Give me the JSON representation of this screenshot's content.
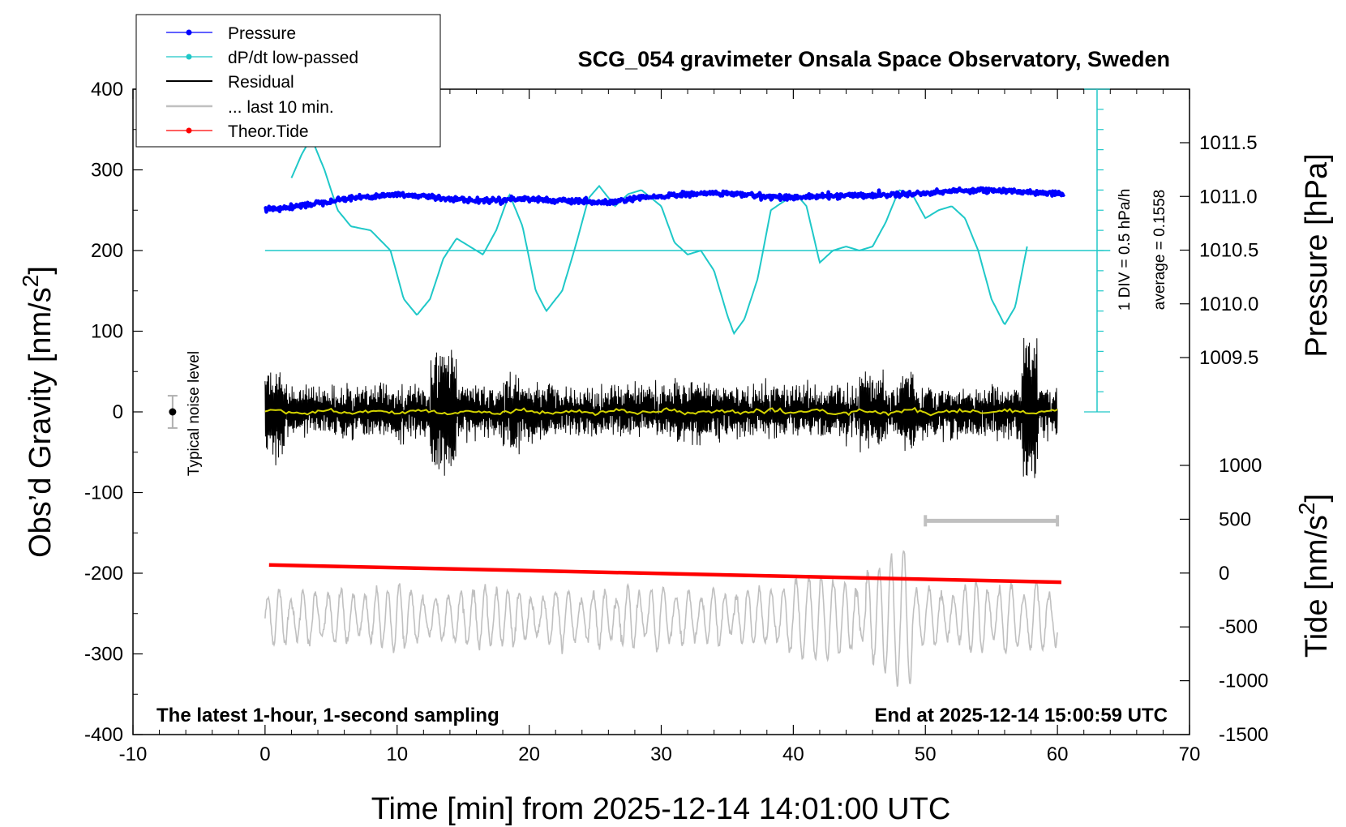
{
  "chart_data": {
    "type": "line",
    "title": "SCG_054 gravimeter Onsala Space Observatory, Sweden",
    "xlabel": "Time [min] from 2025-12-14 14:01:00 UTC",
    "ylabel_left_prefix": "Obs’d Gravity [nm/s",
    "ylabel_left_sup": "2",
    "ylabel_left_suffix": "]",
    "ylabel_right_pressure": "Pressure [hPa]",
    "ylabel_right_tide_prefix": "Tide [nm/s",
    "ylabel_right_tide_sup": "2",
    "ylabel_right_tide_suffix": "]",
    "xlim": [
      -10,
      70
    ],
    "ylim": [
      -400,
      400
    ],
    "x_ticks": [
      "-10",
      "0",
      "10",
      "20",
      "30",
      "40",
      "50",
      "60",
      "70"
    ],
    "y_ticks": [
      "400",
      "300",
      "200",
      "100",
      "0",
      "-100",
      "-200",
      "-300",
      "-400"
    ],
    "pressure_ticks": [
      "1011.5",
      "1011.0",
      "1010.5",
      "1010.0",
      "1009.5"
    ],
    "pressure_tick_values": [
      1011.5,
      1011.0,
      1010.5,
      1010.0,
      1009.5
    ],
    "tide_ticks": [
      "1000",
      "500",
      "0",
      "-500",
      "-1000",
      "-1500"
    ],
    "tide_tick_values": [
      1000,
      500,
      0,
      -500,
      -1000,
      -1500
    ],
    "legend": [
      {
        "label": "Pressure",
        "color": "#0000ff",
        "marker": true
      },
      {
        "label": "dP/dt low-passed",
        "color": "#1fc8c8",
        "marker": true
      },
      {
        "label": "Residual",
        "color": "#000000",
        "marker": false
      },
      {
        "label": "... last 10 min.",
        "color": "#c0c0c0",
        "marker": false
      },
      {
        "label": "Theor.Tide",
        "color": "#ff0000",
        "marker": true
      }
    ],
    "annotations": {
      "bottom_left": "The latest 1-hour, 1-second sampling",
      "bottom_right": "End at 2025-12-14 15:00:59 UTC",
      "noise_label": "Typical noise level",
      "dpdt_scale": "1 DIV = 0.5 hPa/h",
      "dpdt_average": "average = 0.1558"
    },
    "noise_level": {
      "x": -7,
      "y": 0,
      "err": 20
    },
    "last10_bar": {
      "x_start": 50,
      "x_end": 60,
      "y": -135
    },
    "dpdt_axis": {
      "x": 63,
      "y_top": 400,
      "y_bottom": 0,
      "baseline_y": 200
    },
    "series": [
      {
        "name": "Pressure",
        "axis": "pressure_hPa",
        "color": "#0000ff",
        "x": [
          0,
          2,
          4,
          6,
          8,
          10,
          12,
          14,
          16,
          18,
          20,
          22,
          24,
          26,
          28,
          30,
          32,
          34,
          36,
          38,
          40,
          42,
          44,
          46,
          48,
          50,
          52,
          54,
          56,
          58,
          60
        ],
        "values": [
          1010.88,
          1010.9,
          1010.94,
          1010.98,
          1011.0,
          1011.02,
          1011.0,
          1010.98,
          1010.96,
          1010.97,
          1010.98,
          1010.96,
          1010.95,
          1010.94,
          1010.98,
          1011.0,
          1011.02,
          1011.03,
          1011.02,
          1011.0,
          1010.99,
          1011.0,
          1011.01,
          1011.01,
          1011.02,
          1011.03,
          1011.05,
          1011.06,
          1011.05,
          1011.04,
          1011.03
        ]
      },
      {
        "name": "dP/dt low-passed",
        "axis": "left_nm_s2",
        "color": "#1fc8c8",
        "x": [
          2,
          2.8,
          3.5,
          4.5,
          5.5,
          6.5,
          8,
          9.5,
          10.5,
          11.5,
          12.5,
          13.5,
          14.5,
          15.5,
          16.5,
          17.5,
          18.5,
          19.5,
          20.5,
          21.3,
          22.5,
          23.5,
          24.5,
          25.3,
          26.5,
          27.5,
          28.5,
          30,
          31,
          32,
          33,
          34,
          35,
          35.5,
          36.3,
          37.3,
          38.3,
          39.2,
          40.2,
          41,
          42,
          43,
          44,
          45,
          46,
          47,
          48,
          49,
          50,
          51,
          52,
          53,
          54,
          55,
          56,
          56.8,
          57.7
        ],
        "values": [
          290,
          320,
          340,
          300,
          250,
          230,
          225,
          200,
          140,
          120,
          140,
          190,
          215,
          205,
          195,
          225,
          270,
          230,
          150,
          125,
          150,
          205,
          265,
          280,
          255,
          270,
          275,
          255,
          210,
          195,
          200,
          175,
          120,
          97,
          115,
          165,
          250,
          260,
          270,
          255,
          185,
          200,
          205,
          200,
          205,
          235,
          275,
          270,
          240,
          250,
          255,
          240,
          200,
          140,
          108,
          130,
          205
        ]
      },
      {
        "name": "Theor.Tide",
        "axis": "tide_nm_s2",
        "color": "#ff0000",
        "x": [
          0.3,
          60.3
        ],
        "values": [
          75,
          -85
        ]
      }
    ]
  }
}
